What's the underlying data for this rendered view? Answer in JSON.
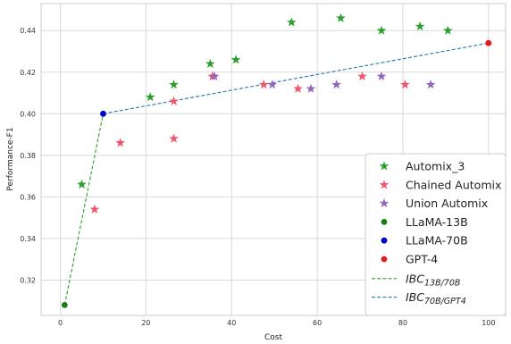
{
  "chart_data": {
    "type": "scatter",
    "xlabel": "Cost",
    "ylabel": "Performance-F1",
    "xlim": [
      -4.5,
      104
    ],
    "ylim": [
      0.303,
      0.453
    ],
    "xticks": [
      0,
      20,
      40,
      60,
      80,
      100
    ],
    "yticks": [
      0.32,
      0.34,
      0.36,
      0.38,
      0.4,
      0.42,
      0.44
    ],
    "ytick_labels": [
      "0.32",
      "0.34",
      "0.36",
      "0.38",
      "0.40",
      "0.42",
      "0.44"
    ],
    "grid": true,
    "legend_position": "bottom-right",
    "series": [
      {
        "name": "Automix_3",
        "marker": "star",
        "color": "#2ca02c",
        "points": [
          [
            5,
            0.366
          ],
          [
            21,
            0.408
          ],
          [
            26.5,
            0.414
          ],
          [
            35,
            0.424
          ],
          [
            41,
            0.426
          ],
          [
            54,
            0.444
          ],
          [
            65.5,
            0.446
          ],
          [
            75,
            0.44
          ],
          [
            84,
            0.442
          ],
          [
            90.5,
            0.44
          ]
        ]
      },
      {
        "name": "Chained Automix",
        "marker": "star",
        "color": "#f0576c",
        "points": [
          [
            8,
            0.354
          ],
          [
            14,
            0.386
          ],
          [
            26.5,
            0.388
          ],
          [
            26.5,
            0.406
          ],
          [
            35.5,
            0.418
          ],
          [
            47.5,
            0.414
          ],
          [
            55.5,
            0.412
          ],
          [
            70.5,
            0.418
          ],
          [
            80.5,
            0.414
          ]
        ]
      },
      {
        "name": "Union Automix",
        "marker": "star",
        "color": "#9467bd",
        "points": [
          [
            36,
            0.418
          ],
          [
            49.5,
            0.414
          ],
          [
            58.5,
            0.412
          ],
          [
            64.5,
            0.414
          ],
          [
            75,
            0.418
          ],
          [
            86.5,
            0.414
          ]
        ]
      },
      {
        "name": "LLaMA-13B",
        "marker": "circle",
        "color": "#1a7d1a",
        "points": [
          [
            1,
            0.308
          ]
        ]
      },
      {
        "name": "LLaMA-70B",
        "marker": "circle",
        "color": "#0000cc",
        "points": [
          [
            10,
            0.4
          ]
        ]
      },
      {
        "name": "GPT-4",
        "marker": "circle",
        "color": "#e41a1c",
        "points": [
          [
            100,
            0.434
          ]
        ]
      }
    ],
    "lines": [
      {
        "base": "IBC",
        "sub": "13B/70B",
        "style": "dashed",
        "color": "#2ca02c",
        "points": [
          [
            1,
            0.308
          ],
          [
            10,
            0.4
          ]
        ]
      },
      {
        "base": "IBC",
        "sub": "70B/GPT4",
        "style": "dashed",
        "color": "#1f77b4",
        "points": [
          [
            10,
            0.4
          ],
          [
            100,
            0.434
          ]
        ]
      }
    ]
  }
}
